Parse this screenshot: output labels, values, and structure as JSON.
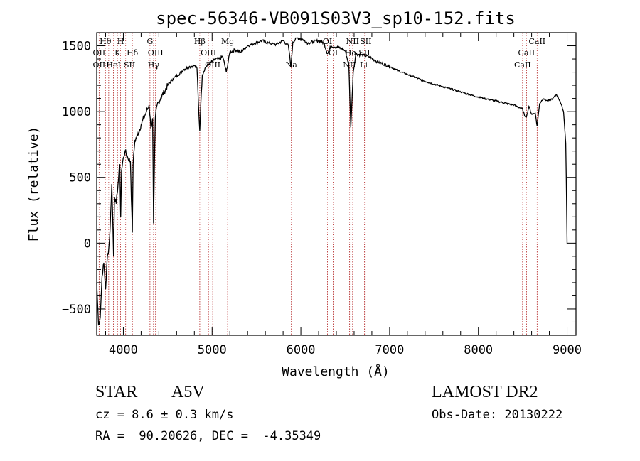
{
  "chart_data": {
    "type": "line",
    "title": "spec-56346-VB091S03V3_sp10-152.fits",
    "xlabel": "Wavelength (Å)",
    "ylabel": "Flux (relative)",
    "xlim": [
      3700,
      9100
    ],
    "ylim": [
      -700,
      1600
    ],
    "xticks": [
      4000,
      5000,
      6000,
      7000,
      8000,
      9000
    ],
    "yticks": [
      -500,
      0,
      500,
      1000,
      1500
    ],
    "grid": false,
    "legend": "none",
    "series": [
      {
        "x": [
          3700,
          3720,
          3740,
          3760,
          3780,
          3800,
          3820,
          3835,
          3850,
          3870,
          3880,
          3890,
          3900,
          3920,
          3940,
          3960,
          3970,
          3980,
          4000,
          4020,
          4050,
          4080,
          4101,
          4110,
          4130,
          4160,
          4200,
          4230,
          4260,
          4290,
          4310,
          4330,
          4340,
          4360,
          4380,
          4420,
          4460,
          4500,
          4560,
          4620,
          4680,
          4740,
          4800,
          4830,
          4850,
          4861,
          4872,
          4890,
          4920,
          4960,
          5000,
          5040,
          5080,
          5120,
          5160,
          5200,
          5260,
          5320,
          5400,
          5480,
          5560,
          5640,
          5720,
          5800,
          5860,
          5889,
          5910,
          5960,
          6020,
          6080,
          6140,
          6200,
          6260,
          6300,
          6340,
          6400,
          6460,
          6500,
          6540,
          6563,
          6590,
          6620,
          6680,
          6760,
          6860,
          6980,
          7100,
          7250,
          7400,
          7600,
          7800,
          8000,
          8200,
          8400,
          8498,
          8520,
          8542,
          8570,
          8600,
          8640,
          8662,
          8690,
          8730,
          8780,
          8840,
          8880,
          8920,
          8960,
          8985,
          9000,
          9005
        ],
        "values": [
          -300,
          -620,
          -560,
          -250,
          -150,
          -350,
          -100,
          -50,
          100,
          450,
          200,
          -100,
          350,
          300,
          450,
          600,
          200,
          550,
          650,
          700,
          650,
          620,
          80,
          600,
          780,
          820,
          900,
          950,
          1000,
          1050,
          880,
          950,
          150,
          950,
          1050,
          1100,
          1150,
          1200,
          1250,
          1280,
          1320,
          1340,
          1350,
          1330,
          1000,
          850,
          1050,
          1280,
          1330,
          1360,
          1380,
          1400,
          1400,
          1420,
          1300,
          1450,
          1470,
          1450,
          1500,
          1520,
          1540,
          1520,
          1510,
          1540,
          1500,
          1340,
          1530,
          1560,
          1550,
          1520,
          1530,
          1540,
          1520,
          1440,
          1500,
          1490,
          1480,
          1460,
          1360,
          880,
          1300,
          1440,
          1430,
          1420,
          1380,
          1350,
          1310,
          1270,
          1230,
          1190,
          1150,
          1110,
          1080,
          1050,
          1020,
          970,
          960,
          1040,
          980,
          990,
          890,
          1060,
          1100,
          1080,
          1100,
          1130,
          1080,
          1000,
          760,
          0,
          0
        ]
      }
    ],
    "line_markers": [
      3727,
      3798,
      3835,
      3889,
      3934,
      3969,
      4026,
      4102,
      4300,
      4340,
      4363,
      4861,
      4959,
      5007,
      5175,
      5893,
      6300,
      6364,
      6548,
      6563,
      6583,
      6716,
      6731,
      8498,
      8542,
      8662
    ],
    "annotations": [
      {
        "text": "Hθ",
        "x": 3798,
        "row": 1
      },
      {
        "text": "H",
        "x": 3969,
        "row": 1
      },
      {
        "text": "G",
        "x": 4300,
        "row": 1
      },
      {
        "text": "Hβ",
        "x": 4861,
        "row": 1
      },
      {
        "text": "Mg",
        "x": 5175,
        "row": 1
      },
      {
        "text": "OI",
        "x": 6300,
        "row": 1
      },
      {
        "text": "NII",
        "x": 6583,
        "row": 1
      },
      {
        "text": "SII",
        "x": 6731,
        "row": 1
      },
      {
        "text": "CaII",
        "x": 8662,
        "row": 1
      },
      {
        "text": "OII",
        "x": 3727,
        "row": 2
      },
      {
        "text": "K",
        "x": 3934,
        "row": 2
      },
      {
        "text": "Hδ",
        "x": 4102,
        "row": 2
      },
      {
        "text": "OIII",
        "x": 4363,
        "row": 2
      },
      {
        "text": "OIII",
        "x": 4959,
        "row": 2
      },
      {
        "text": "OI",
        "x": 6364,
        "row": 2
      },
      {
        "text": "Hα",
        "x": 6563,
        "row": 2
      },
      {
        "text": "SII",
        "x": 6716,
        "row": 2
      },
      {
        "text": "CaII",
        "x": 8542,
        "row": 2
      },
      {
        "text": "OII",
        "x": 3727,
        "row": 3
      },
      {
        "text": "HeI",
        "x": 3889,
        "row": 3
      },
      {
        "text": "SII",
        "x": 4069,
        "row": 3
      },
      {
        "text": "Hγ",
        "x": 4340,
        "row": 3
      },
      {
        "text": "OIII",
        "x": 5007,
        "row": 3
      },
      {
        "text": "Na",
        "x": 5893,
        "row": 3
      },
      {
        "text": "NII",
        "x": 6548,
        "row": 3
      },
      {
        "text": "Li",
        "x": 6708,
        "row": 3
      },
      {
        "text": "CaII",
        "x": 8498,
        "row": 3
      }
    ],
    "colors": {
      "spectrum": "#000000",
      "markers": "#b22222",
      "axes": "#000000"
    }
  },
  "info": {
    "class": "STAR",
    "subclass": "A5V",
    "survey": "LAMOST DR2",
    "cz": "cz = 8.6 ± 0.3 km/s",
    "obs_date": "Obs-Date: 20130222",
    "coords": "RA =  90.20626, DEC =  -4.35349"
  }
}
